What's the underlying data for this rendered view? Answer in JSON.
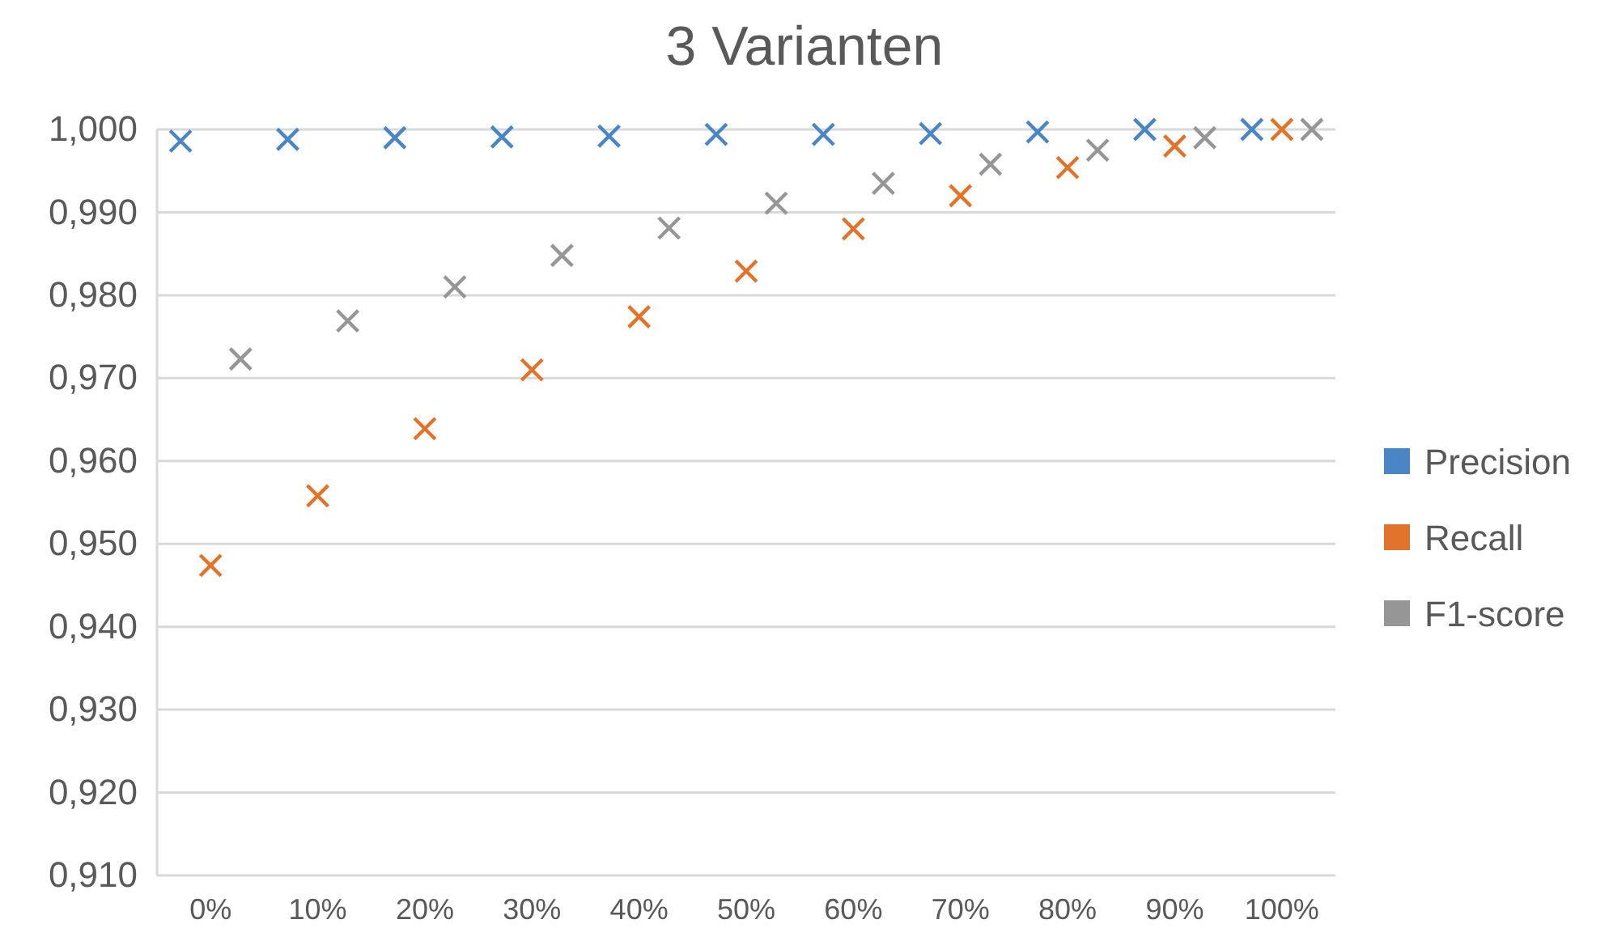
{
  "chart_data": {
    "type": "scatter",
    "title": "3 Varianten",
    "categories": [
      "0%",
      "10%",
      "20%",
      "30%",
      "40%",
      "50%",
      "60%",
      "70%",
      "80%",
      "90%",
      "100%"
    ],
    "series": [
      {
        "name": "Precision",
        "color": "#4a86c5",
        "values": [
          0.9986,
          0.9988,
          0.999,
          0.9991,
          0.9992,
          0.9994,
          0.9994,
          0.9995,
          0.9997,
          1.0,
          1.0
        ]
      },
      {
        "name": "Recall",
        "color": "#e2732a",
        "values": [
          0.9474,
          0.9558,
          0.9639,
          0.971,
          0.9774,
          0.9829,
          0.988,
          0.992,
          0.9954,
          0.998,
          1.0
        ]
      },
      {
        "name": "F1-score",
        "color": "#969696",
        "values": [
          0.9723,
          0.9769,
          0.981,
          0.9848,
          0.9881,
          0.9911,
          0.9935,
          0.9958,
          0.9975,
          0.999,
          1.0
        ]
      }
    ],
    "ylim": [
      0.91,
      1.0
    ],
    "yticks": [
      {
        "value": 0.91,
        "label": "0,910"
      },
      {
        "value": 0.92,
        "label": "0,920"
      },
      {
        "value": 0.93,
        "label": "0,930"
      },
      {
        "value": 0.94,
        "label": "0,940"
      },
      {
        "value": 0.95,
        "label": "0,950"
      },
      {
        "value": 0.96,
        "label": "0,960"
      },
      {
        "value": 0.97,
        "label": "0,970"
      },
      {
        "value": 0.98,
        "label": "0,980"
      },
      {
        "value": 0.99,
        "label": "0,990"
      },
      {
        "value": 1.0,
        "label": "1,000"
      }
    ],
    "grid": "y",
    "legend": "right",
    "marker": "cross"
  }
}
